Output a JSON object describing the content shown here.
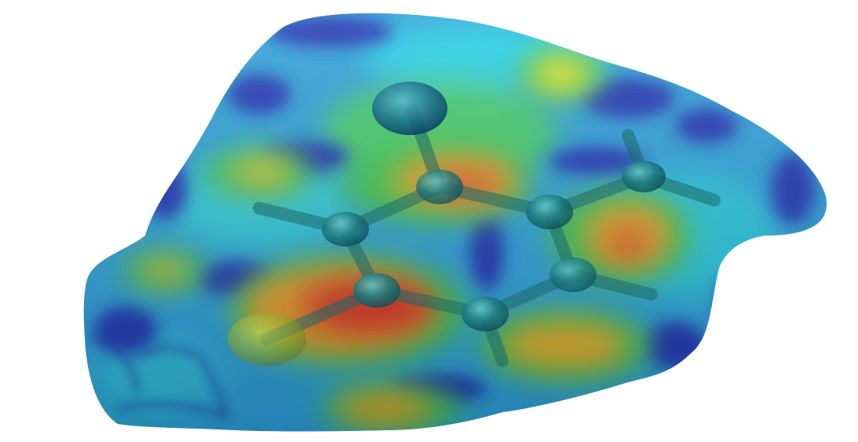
{
  "scene": {
    "subject": "hirshfeld-surface-with-molecule",
    "surface_colors": {
      "base": "#2a9fd6",
      "cyan": "#23d3e6",
      "blue": "#1f3fb8",
      "green": "#39c24a",
      "yellow": "#e8e62a",
      "orange": "#e8a52a",
      "red": "#d42a1f"
    },
    "atom_color": "#1c6f73",
    "bond_color": "#1d6b6a",
    "background": "#ffffff"
  }
}
